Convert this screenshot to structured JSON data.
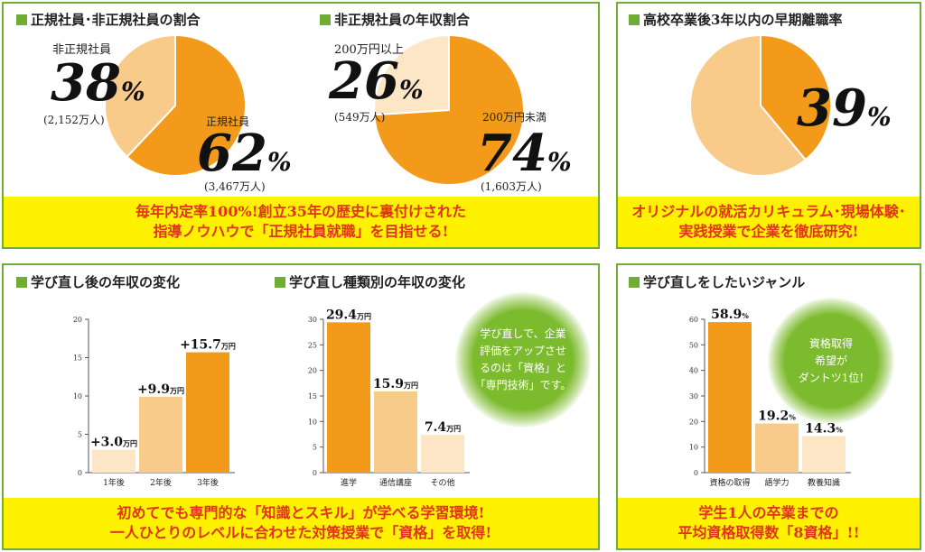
{
  "panels": {
    "top_left": {
      "titles": [
        "正規社員･非正規社員の割合",
        "非正規社員の年収割合"
      ],
      "banner": [
        "毎年内定率100%!創立35年の歴史に裏付けされた",
        "指導ノウハウで「正規社員就職」を目指せる!"
      ]
    },
    "top_right": {
      "title": "高校卒業後3年以内の早期離職率",
      "banner": [
        "オリジナルの就活カリキュラム･現場体験･",
        "実践授業で企業を徹底研究!"
      ]
    },
    "bottom_left": {
      "titles": [
        "学び直し後の年収の変化",
        "学び直し種類別の年収の変化"
      ],
      "bubble": [
        "学び直しで、企業",
        "評価をアップさせ",
        "るのは「資格」と",
        "「専門技術」です。"
      ],
      "banner": [
        "初めてでも専門的な「知識とスキル」が学べる学習環境!",
        "一人ひとりのレベルに合わせた対策授業で「資格」を取得!"
      ]
    },
    "bottom_right": {
      "title": "学び直しをしたいジャンル",
      "bubble": [
        "資格取得",
        "希望が",
        "ダントツ1位!"
      ],
      "banner": [
        "学生1人の卒業までの",
        "平均資格取得数「8資格」!!"
      ]
    }
  },
  "labels": {
    "pie1_light": {
      "name": "非正規社員",
      "pct": "38",
      "sub": "(2,152万人)"
    },
    "pie1_dark": {
      "name": "正規社員",
      "pct": "62",
      "sub": "(3,467万人)"
    },
    "pie2_light": {
      "name": "200万円以上",
      "pct": "26",
      "sub": "(549万人)"
    },
    "pie2_dark": {
      "name": "200万円未満",
      "pct": "74",
      "sub": "(1,603万人)"
    },
    "pie3": {
      "pct": "39"
    },
    "percent_sign": "%"
  },
  "colors": {
    "dark": "#f39a1b",
    "light": "#f9cb8a",
    "lighter": "#fde6c6",
    "green": "#6fae32",
    "banner_bg": "#fff200",
    "banner_text": "#e0331b"
  },
  "chart_data": [
    {
      "type": "pie",
      "labels": [
        "正規社員",
        "非正規社員"
      ],
      "values": [
        62,
        38
      ]
    },
    {
      "type": "pie",
      "labels": [
        "200万円未満",
        "200万円以上"
      ],
      "values": [
        74,
        26
      ]
    },
    {
      "type": "pie",
      "values": [
        39,
        61
      ]
    },
    {
      "type": "bar",
      "categories": [
        "1年後",
        "2年後",
        "3年後"
      ],
      "values": [
        3.0,
        9.9,
        15.7
      ],
      "value_labels": [
        "+3.0",
        "+9.9",
        "+15.7"
      ],
      "unit": "万円",
      "ylim": [
        0,
        20
      ],
      "yticks": [
        0,
        5,
        10,
        15,
        20
      ]
    },
    {
      "type": "bar",
      "categories": [
        "進学",
        "通信講座",
        "その他"
      ],
      "values": [
        29.4,
        15.9,
        7.4
      ],
      "value_labels": [
        "29.4",
        "15.9",
        "7.4"
      ],
      "unit": "万円",
      "ylim": [
        0,
        30
      ],
      "yticks": [
        0,
        5,
        10,
        15,
        20,
        25,
        30
      ]
    },
    {
      "type": "bar",
      "categories": [
        "資格の取得",
        "語学力",
        "教養知識"
      ],
      "values": [
        58.9,
        19.2,
        14.3
      ],
      "value_labels": [
        "58.9",
        "19.2",
        "14.3"
      ],
      "unit": "%",
      "ylim": [
        0,
        60
      ],
      "yticks": [
        0,
        10,
        20,
        30,
        40,
        50,
        60
      ]
    }
  ]
}
